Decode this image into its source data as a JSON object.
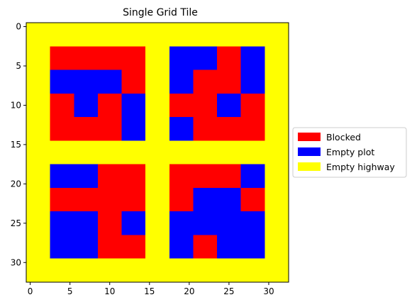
{
  "chart_data": {
    "type": "heatmap",
    "title": "Single Grid Tile",
    "xlabel": "",
    "ylabel": "",
    "x_range": [
      -0.5,
      32.5
    ],
    "y_range": [
      -0.5,
      32.5
    ],
    "y_inverted": true,
    "x_ticks": [
      0,
      5,
      10,
      15,
      20,
      25,
      30
    ],
    "y_ticks": [
      0,
      5,
      10,
      15,
      20,
      25,
      30
    ],
    "grid": false,
    "legend_position": "right-center",
    "colors": {
      "blocked": "#ff0000",
      "empty_plot": "#0000ff",
      "empty_highway": "#ffff00"
    },
    "legend": [
      {
        "label": "Blocked",
        "key": "blocked"
      },
      {
        "label": "Empty plot",
        "key": "empty_plot"
      },
      {
        "label": "Empty highway",
        "key": "empty_highway"
      }
    ],
    "background_category": "empty_highway",
    "cells": [
      {
        "category": "blocked",
        "x0": 3,
        "x1": 14,
        "y0": 3,
        "y1": 14
      },
      {
        "category": "empty_plot",
        "x0": 3,
        "x1": 11,
        "y0": 6,
        "y1": 8
      },
      {
        "category": "empty_plot",
        "x0": 6,
        "x1": 8,
        "y0": 9,
        "y1": 11
      },
      {
        "category": "empty_plot",
        "x0": 12,
        "x1": 14,
        "y0": 9,
        "y1": 14
      },
      {
        "category": "blocked",
        "x0": 18,
        "x1": 29,
        "y0": 3,
        "y1": 14
      },
      {
        "category": "empty_plot",
        "x0": 18,
        "x1": 23,
        "y0": 3,
        "y1": 5
      },
      {
        "category": "empty_plot",
        "x0": 18,
        "x1": 20,
        "y0": 6,
        "y1": 8
      },
      {
        "category": "empty_plot",
        "x0": 27,
        "x1": 29,
        "y0": 3,
        "y1": 8
      },
      {
        "category": "empty_plot",
        "x0": 24,
        "x1": 26,
        "y0": 9,
        "y1": 11
      },
      {
        "category": "empty_plot",
        "x0": 18,
        "x1": 20,
        "y0": 12,
        "y1": 14
      },
      {
        "category": "blocked",
        "x0": 3,
        "x1": 14,
        "y0": 18,
        "y1": 29
      },
      {
        "category": "empty_plot",
        "x0": 3,
        "x1": 8,
        "y0": 18,
        "y1": 20
      },
      {
        "category": "empty_plot",
        "x0": 3,
        "x1": 8,
        "y0": 24,
        "y1": 29
      },
      {
        "category": "empty_plot",
        "x0": 12,
        "x1": 14,
        "y0": 24,
        "y1": 26
      },
      {
        "category": "blocked",
        "x0": 18,
        "x1": 29,
        "y0": 18,
        "y1": 29
      },
      {
        "category": "empty_plot",
        "x0": 27,
        "x1": 29,
        "y0": 18,
        "y1": 20
      },
      {
        "category": "empty_plot",
        "x0": 21,
        "x1": 26,
        "y0": 21,
        "y1": 23
      },
      {
        "category": "empty_plot",
        "x0": 18,
        "x1": 29,
        "y0": 24,
        "y1": 26
      },
      {
        "category": "empty_plot",
        "x0": 18,
        "x1": 20,
        "y0": 27,
        "y1": 29
      },
      {
        "category": "empty_plot",
        "x0": 24,
        "x1": 29,
        "y0": 27,
        "y1": 29
      }
    ]
  }
}
